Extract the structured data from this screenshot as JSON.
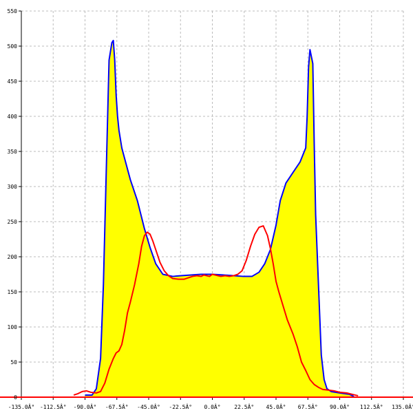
{
  "chart_data": {
    "type": "area",
    "title": "",
    "xlabel": "",
    "ylabel": "",
    "xlim": [
      -135,
      135
    ],
    "ylim": [
      0,
      550
    ],
    "grid": true,
    "x_ticks": [
      -135,
      -112.5,
      -90,
      -67.5,
      -45,
      -22.5,
      0,
      22.5,
      45,
      67.5,
      90,
      112.5,
      135
    ],
    "x_tick_labels": [
      "-135.0Â°",
      "-112.5Â°",
      "-90.0Â°",
      "-67.5Â°",
      "-45.0Â°",
      "-22.5Â°",
      "0.0Â°",
      "22.5Â°",
      "45.0Â°",
      "67.5Â°",
      "90.0Â°",
      "112.5Â°",
      "135.0Â°"
    ],
    "y_ticks": [
      0,
      50,
      100,
      150,
      200,
      250,
      300,
      350,
      400,
      450,
      500,
      550
    ],
    "y_tick_labels": [
      "0",
      "50",
      "100",
      "150",
      "200",
      "250",
      "300",
      "350",
      "400",
      "450",
      "500",
      "550"
    ],
    "colors": {
      "fill": "#ffff00",
      "blue_series": "#0000ff",
      "red_series": "#ff0000",
      "grid": "#bbbbbb",
      "axis": "#000000"
    },
    "series": [
      {
        "color": "#0000ff",
        "filled": true,
        "x": [
          -90,
          -85,
          -82,
          -79,
          -77,
          -75,
          -73,
          -71,
          -70,
          -69,
          -68,
          -67,
          -66,
          -64,
          -62,
          -58,
          -53,
          -48,
          -44,
          -40,
          -35,
          -28,
          -22,
          -15,
          -8,
          0,
          8,
          15,
          22,
          28,
          33,
          37,
          41,
          -0.0001,
          0.0001,
          45,
          48,
          52,
          57,
          62,
          66,
          67,
          68,
          69,
          70,
          71,
          72,
          73,
          75,
          77,
          79,
          81,
          84,
          90,
          97,
          100
        ],
        "y": [
          3,
          3,
          12,
          55,
          160,
          320,
          480,
          505,
          508,
          480,
          430,
          400,
          380,
          355,
          340,
          310,
          280,
          240,
          213,
          190,
          175,
          172,
          173,
          174,
          175,
          175,
          174,
          173,
          172,
          172,
          178,
          190,
          210,
          175,
          175,
          245,
          280,
          305,
          320,
          335,
          355,
          400,
          470,
          495,
          485,
          475,
          360,
          260,
          160,
          60,
          25,
          12,
          8,
          6,
          4,
          1
        ]
      },
      {
        "color": "#ff0000",
        "filled": false,
        "x": [
          -98,
          -95,
          -92,
          -89,
          -86,
          -82,
          -79,
          -76,
          -73,
          -70,
          -68,
          -66,
          -64,
          -62,
          -60,
          -58,
          -55,
          -52,
          -50,
          -48,
          -46,
          -44,
          -42,
          -40,
          -37,
          -34,
          -31,
          -28,
          -24,
          -20,
          -17,
          -14,
          -11,
          -8,
          -6,
          -4,
          -2,
          0,
          2,
          4,
          6,
          9,
          12,
          15,
          18,
          21,
          24,
          27,
          30,
          33,
          36,
          39,
          41,
          43,
          45,
          47,
          50,
          53,
          57,
          60,
          63,
          66,
          69,
          72,
          75,
          78,
          82,
          86,
          90,
          95,
          99,
          103
        ],
        "y": [
          3,
          5,
          8,
          9,
          7,
          6,
          8,
          20,
          40,
          55,
          63,
          66,
          75,
          95,
          120,
          135,
          160,
          190,
          215,
          230,
          235,
          232,
          222,
          210,
          192,
          180,
          173,
          169,
          168,
          168,
          170,
          172,
          173,
          172,
          174,
          173,
          172,
          175,
          174,
          173,
          172,
          173,
          172,
          173,
          175,
          180,
          195,
          215,
          232,
          242,
          244,
          230,
          212,
          190,
          165,
          150,
          130,
          110,
          90,
          72,
          50,
          38,
          25,
          18,
          14,
          11,
          10,
          9,
          7,
          6,
          4,
          2
        ]
      }
    ]
  }
}
